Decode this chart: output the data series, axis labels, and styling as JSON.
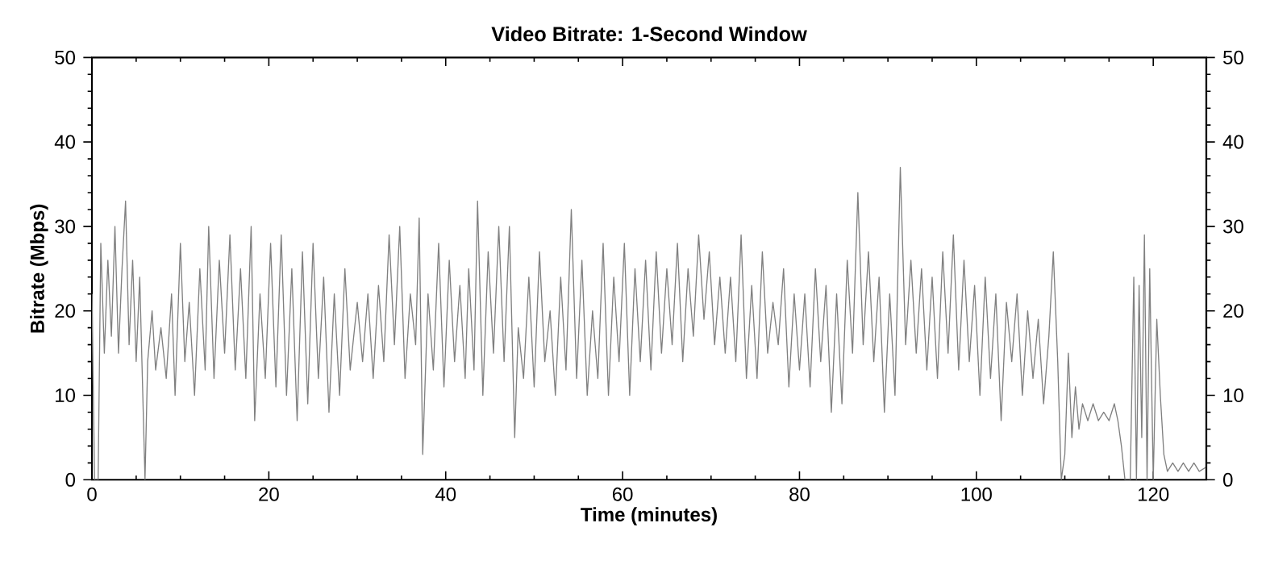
{
  "chart_data": {
    "type": "line",
    "title": "Video Bitrate: 1-Second Window",
    "xlabel": "Time (minutes)",
    "ylabel": "Bitrate (Mbps)",
    "x": [
      0,
      0.3,
      0.7,
      1.0,
      1.4,
      1.8,
      2.2,
      2.6,
      3.0,
      3.4,
      3.8,
      4.2,
      4.6,
      5.0,
      5.4,
      5.7,
      6.0,
      6.3,
      6.8,
      7.2,
      7.8,
      8.4,
      9.0,
      9.4,
      10.0,
      10.5,
      11.0,
      11.6,
      12.2,
      12.8,
      13.2,
      13.8,
      14.4,
      15.0,
      15.6,
      16.2,
      16.8,
      17.4,
      18.0,
      18.4,
      19.0,
      19.6,
      20.2,
      20.8,
      21.4,
      22.0,
      22.6,
      23.2,
      23.8,
      24.4,
      25.0,
      25.6,
      26.2,
      26.8,
      27.4,
      28.0,
      28.6,
      29.2,
      30.0,
      30.6,
      31.2,
      31.8,
      32.4,
      33.0,
      33.6,
      34.2,
      34.8,
      35.4,
      36.0,
      36.6,
      37.0,
      37.4,
      38.0,
      38.6,
      39.2,
      39.8,
      40.4,
      41.0,
      41.6,
      42.2,
      42.6,
      43.2,
      43.6,
      44.2,
      44.8,
      45.4,
      46.0,
      46.6,
      47.2,
      47.8,
      48.2,
      48.8,
      49.4,
      50.0,
      50.6,
      51.2,
      51.8,
      52.4,
      53.0,
      53.6,
      54.2,
      54.8,
      55.4,
      56.0,
      56.6,
      57.2,
      57.8,
      58.4,
      59.0,
      59.6,
      60.2,
      60.8,
      61.4,
      62.0,
      62.6,
      63.2,
      63.8,
      64.4,
      65.0,
      65.6,
      66.2,
      66.8,
      67.4,
      68.0,
      68.6,
      69.2,
      69.8,
      70.4,
      71.0,
      71.6,
      72.2,
      72.8,
      73.4,
      74.0,
      74.6,
      75.2,
      75.8,
      76.4,
      77.0,
      77.6,
      78.2,
      78.8,
      79.4,
      80.0,
      80.6,
      81.2,
      81.8,
      82.4,
      83.0,
      83.6,
      84.2,
      84.8,
      85.4,
      86.0,
      86.6,
      87.2,
      87.8,
      88.4,
      89.0,
      89.6,
      90.2,
      90.8,
      91.4,
      92.0,
      92.6,
      93.2,
      93.8,
      94.4,
      95.0,
      95.6,
      96.2,
      96.8,
      97.4,
      98.0,
      98.6,
      99.2,
      99.8,
      100.4,
      101.0,
      101.6,
      102.2,
      102.8,
      103.4,
      104.0,
      104.6,
      105.2,
      105.8,
      106.4,
      107.0,
      107.6,
      108.2,
      108.7,
      109.2,
      109.6,
      110.0,
      110.4,
      110.8,
      111.2,
      111.6,
      112.0,
      112.6,
      113.2,
      113.8,
      114.4,
      115.0,
      115.6,
      116.0,
      116.4,
      116.8,
      117.4,
      117.8,
      118.1,
      118.4,
      118.7,
      119.0,
      119.3,
      119.6,
      120.0,
      120.4,
      120.8,
      121.2,
      121.6,
      122.2,
      122.8,
      123.4,
      124.0,
      124.6,
      125.2,
      126.0
    ],
    "values": [
      22,
      0,
      0,
      28,
      15,
      26,
      17,
      30,
      15,
      25,
      33,
      16,
      26,
      14,
      24,
      12,
      0,
      14,
      20,
      13,
      18,
      12,
      22,
      10,
      28,
      14,
      21,
      10,
      25,
      13,
      30,
      12,
      26,
      15,
      29,
      13,
      25,
      12,
      30,
      7,
      22,
      12,
      28,
      11,
      29,
      10,
      25,
      7,
      27,
      9,
      28,
      12,
      24,
      8,
      22,
      10,
      25,
      13,
      21,
      14,
      22,
      12,
      23,
      14,
      29,
      16,
      30,
      12,
      22,
      16,
      31,
      3,
      22,
      13,
      28,
      11,
      26,
      14,
      23,
      12,
      25,
      13,
      33,
      10,
      27,
      15,
      30,
      14,
      30,
      5,
      18,
      12,
      24,
      11,
      27,
      14,
      20,
      10,
      24,
      13,
      32,
      12,
      26,
      10,
      20,
      12,
      28,
      10,
      24,
      14,
      28,
      10,
      25,
      14,
      26,
      13,
      27,
      15,
      25,
      16,
      28,
      14,
      25,
      17,
      29,
      19,
      27,
      16,
      24,
      15,
      24,
      14,
      29,
      12,
      23,
      12,
      27,
      15,
      21,
      16,
      25,
      11,
      22,
      13,
      22,
      11,
      25,
      14,
      23,
      8,
      22,
      9,
      26,
      15,
      34,
      16,
      27,
      14,
      24,
      8,
      22,
      10,
      37,
      16,
      26,
      15,
      25,
      13,
      24,
      12,
      27,
      15,
      29,
      13,
      26,
      14,
      23,
      10,
      24,
      12,
      22,
      7,
      21,
      14,
      22,
      10,
      20,
      12,
      19,
      9,
      17,
      27,
      14,
      0,
      3,
      15,
      5,
      11,
      6,
      9,
      7,
      9,
      7,
      8,
      7,
      9,
      7,
      4,
      0,
      0,
      24,
      0,
      23,
      5,
      29,
      0,
      25,
      0,
      19,
      10,
      3,
      1,
      2,
      1,
      2,
      1,
      2,
      1,
      1.5
    ],
    "color": "#808080",
    "xlim": [
      0,
      126
    ],
    "xticks": [
      0,
      20,
      40,
      60,
      80,
      100,
      120
    ],
    "ylim": [
      0,
      50
    ],
    "yticks": [
      0,
      10,
      20,
      30,
      40,
      50
    ],
    "y2lim": [
      0,
      50
    ],
    "y2ticks": [
      0,
      10,
      20,
      30,
      40,
      50
    ]
  }
}
